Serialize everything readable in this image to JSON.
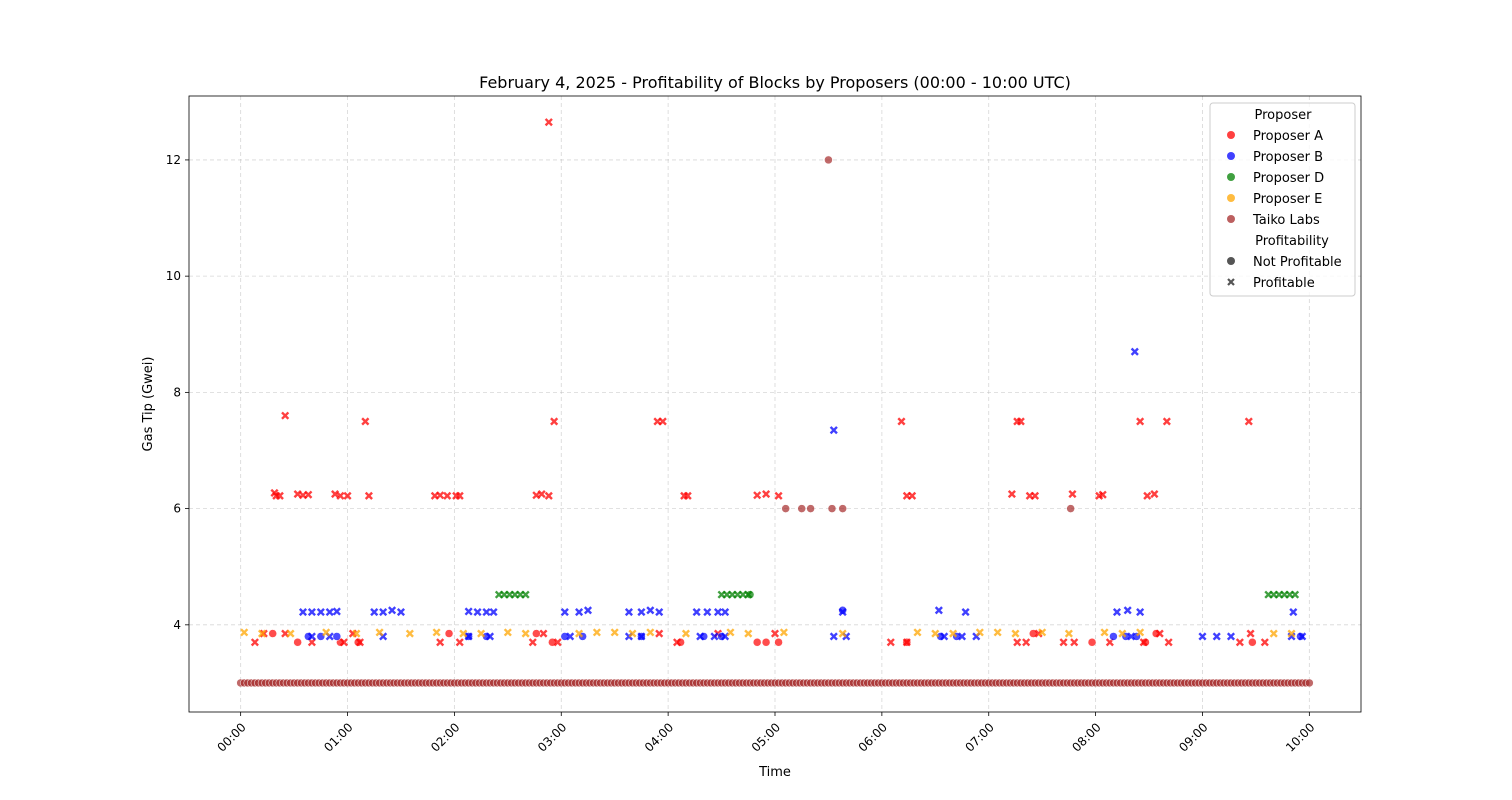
{
  "chart_data": {
    "type": "scatter",
    "title": "February 4, 2025 - Profitability of Blocks by Proposers (00:00 - 10:00 UTC)",
    "xlabel": "Time",
    "ylabel": "Gas Tip (Gwei)",
    "xlim": [
      "2025-02-04T23:31",
      "2025-02-05T10:29"
    ],
    "ylim": [
      2.5,
      13.1
    ],
    "x_ticks": [
      "00:00",
      "01:00",
      "02:00",
      "03:00",
      "04:00",
      "05:00",
      "06:00",
      "07:00",
      "08:00",
      "09:00",
      "10:00"
    ],
    "y_ticks": [
      4,
      6,
      8,
      10,
      12
    ],
    "grid": true,
    "legend": {
      "placement": "top-right",
      "hue_title": "Proposer",
      "style_title": "Profitability",
      "styles": [
        {
          "name": "Not Profitable",
          "marker": "circle"
        },
        {
          "name": "Profitable",
          "marker": "x"
        }
      ]
    },
    "series": [
      {
        "name": "Proposer A",
        "color": "#ff0000",
        "profitable": [
          [
            "00:19",
            6.27
          ],
          [
            "00:20",
            6.22
          ],
          [
            "00:22",
            6.22
          ],
          [
            "00:25",
            7.6
          ],
          [
            "00:32",
            6.25
          ],
          [
            "00:35",
            6.23
          ],
          [
            "00:38",
            6.24
          ],
          [
            "00:53",
            6.25
          ],
          [
            "00:56",
            6.22
          ],
          [
            "01:00",
            6.22
          ],
          [
            "01:10",
            7.5
          ],
          [
            "01:12",
            6.22
          ],
          [
            "01:49",
            6.22
          ],
          [
            "01:52",
            6.23
          ],
          [
            "01:56",
            6.22
          ],
          [
            "02:01",
            6.22
          ],
          [
            "02:03",
            6.22
          ],
          [
            "02:46",
            6.23
          ],
          [
            "02:49",
            6.25
          ],
          [
            "02:53",
            6.22
          ],
          [
            "02:56",
            7.5
          ],
          [
            "02:53",
            12.65
          ],
          [
            "03:54",
            7.5
          ],
          [
            "03:57",
            7.5
          ],
          [
            "04:09",
            6.22
          ],
          [
            "04:11",
            6.22
          ],
          [
            "04:50",
            6.23
          ],
          [
            "04:55",
            6.25
          ],
          [
            "05:02",
            6.22
          ],
          [
            "06:11",
            7.5
          ],
          [
            "06:14",
            6.22
          ],
          [
            "06:17",
            6.22
          ],
          [
            "07:13",
            6.25
          ],
          [
            "07:16",
            7.5
          ],
          [
            "07:18",
            7.5
          ],
          [
            "07:23",
            6.22
          ],
          [
            "07:26",
            6.22
          ],
          [
            "07:47",
            6.25
          ],
          [
            "08:02",
            6.22
          ],
          [
            "08:04",
            6.24
          ],
          [
            "08:25",
            7.5
          ],
          [
            "08:29",
            6.22
          ],
          [
            "08:33",
            6.25
          ],
          [
            "08:40",
            7.5
          ],
          [
            "09:26",
            7.5
          ],
          [
            "00:08",
            3.7
          ],
          [
            "00:13",
            3.85
          ],
          [
            "00:25",
            3.85
          ],
          [
            "00:40",
            3.7
          ],
          [
            "00:58",
            3.7
          ],
          [
            "01:03",
            3.85
          ],
          [
            "01:07",
            3.7
          ],
          [
            "01:52",
            3.7
          ],
          [
            "02:03",
            3.7
          ],
          [
            "02:44",
            3.7
          ],
          [
            "02:50",
            3.85
          ],
          [
            "02:58",
            3.7
          ],
          [
            "03:55",
            3.85
          ],
          [
            "04:05",
            3.7
          ],
          [
            "04:28",
            3.85
          ],
          [
            "05:00",
            3.85
          ],
          [
            "06:05",
            3.7
          ],
          [
            "06:14",
            3.7
          ],
          [
            "07:16",
            3.7
          ],
          [
            "07:21",
            3.7
          ],
          [
            "07:28",
            3.85
          ],
          [
            "07:42",
            3.7
          ],
          [
            "07:48",
            3.7
          ],
          [
            "08:08",
            3.7
          ],
          [
            "08:27",
            3.7
          ],
          [
            "08:36",
            3.85
          ],
          [
            "08:41",
            3.7
          ],
          [
            "09:21",
            3.7
          ],
          [
            "09:27",
            3.85
          ],
          [
            "09:35",
            3.7
          ]
        ],
        "not_profitable": [
          [
            "00:18",
            3.85
          ],
          [
            "00:32",
            3.7
          ],
          [
            "00:56",
            3.7
          ],
          [
            "01:06",
            3.7
          ],
          [
            "01:57",
            3.85
          ],
          [
            "02:46",
            3.85
          ],
          [
            "02:55",
            3.7
          ],
          [
            "04:07",
            3.7
          ],
          [
            "04:50",
            3.7
          ],
          [
            "04:55",
            3.7
          ],
          [
            "05:02",
            3.7
          ],
          [
            "06:14",
            3.7
          ],
          [
            "07:25",
            3.85
          ],
          [
            "07:58",
            3.7
          ],
          [
            "08:28",
            3.7
          ],
          [
            "08:34",
            3.85
          ],
          [
            "09:28",
            3.7
          ]
        ]
      },
      {
        "name": "Proposer B",
        "color": "#0000ff",
        "profitable": [
          [
            "00:35",
            4.22
          ],
          [
            "00:40",
            4.22
          ],
          [
            "00:45",
            4.22
          ],
          [
            "00:50",
            4.22
          ],
          [
            "00:54",
            4.23
          ],
          [
            "01:15",
            4.22
          ],
          [
            "01:20",
            4.22
          ],
          [
            "01:25",
            4.25
          ],
          [
            "01:30",
            4.22
          ],
          [
            "02:08",
            4.23
          ],
          [
            "02:13",
            4.22
          ],
          [
            "02:18",
            4.22
          ],
          [
            "02:22",
            4.22
          ],
          [
            "03:02",
            4.22
          ],
          [
            "03:10",
            4.22
          ],
          [
            "03:15",
            4.25
          ],
          [
            "03:38",
            4.22
          ],
          [
            "03:45",
            4.22
          ],
          [
            "03:50",
            4.25
          ],
          [
            "03:55",
            4.22
          ],
          [
            "04:16",
            4.22
          ],
          [
            "04:22",
            4.22
          ],
          [
            "04:28",
            4.22
          ],
          [
            "04:32",
            4.22
          ],
          [
            "05:33",
            7.35
          ],
          [
            "05:38",
            4.22
          ],
          [
            "06:32",
            4.25
          ],
          [
            "06:47",
            4.22
          ],
          [
            "08:12",
            4.22
          ],
          [
            "08:18",
            4.25
          ],
          [
            "08:22",
            8.7
          ],
          [
            "08:25",
            4.22
          ],
          [
            "09:51",
            4.22
          ],
          [
            "00:40",
            3.8
          ],
          [
            "00:50",
            3.8
          ],
          [
            "01:20",
            3.8
          ],
          [
            "02:08",
            3.8
          ],
          [
            "02:20",
            3.8
          ],
          [
            "03:05",
            3.8
          ],
          [
            "03:38",
            3.8
          ],
          [
            "03:45",
            3.8
          ],
          [
            "04:18",
            3.8
          ],
          [
            "04:26",
            3.8
          ],
          [
            "04:32",
            3.8
          ],
          [
            "05:33",
            3.8
          ],
          [
            "05:40",
            3.8
          ],
          [
            "06:35",
            3.8
          ],
          [
            "06:45",
            3.8
          ],
          [
            "06:53",
            3.8
          ],
          [
            "08:20",
            3.8
          ],
          [
            "09:00",
            3.8
          ],
          [
            "09:08",
            3.8
          ],
          [
            "09:16",
            3.8
          ],
          [
            "09:50",
            3.8
          ],
          [
            "09:56",
            3.8
          ]
        ],
        "not_profitable": [
          [
            "00:38",
            3.8
          ],
          [
            "00:45",
            3.8
          ],
          [
            "00:54",
            3.8
          ],
          [
            "02:08",
            3.8
          ],
          [
            "02:18",
            3.8
          ],
          [
            "03:02",
            3.8
          ],
          [
            "03:12",
            3.8
          ],
          [
            "03:45",
            3.8
          ],
          [
            "04:20",
            3.8
          ],
          [
            "04:30",
            3.8
          ],
          [
            "05:38",
            4.25
          ],
          [
            "06:33",
            3.8
          ],
          [
            "06:42",
            3.8
          ],
          [
            "08:10",
            3.8
          ],
          [
            "08:17",
            3.8
          ],
          [
            "08:23",
            3.8
          ],
          [
            "09:55",
            3.8
          ]
        ]
      },
      {
        "name": "Proposer D",
        "color": "#008000",
        "profitable": [
          [
            "02:25",
            4.52
          ],
          [
            "02:28",
            4.52
          ],
          [
            "02:31",
            4.52
          ],
          [
            "02:34",
            4.52
          ],
          [
            "02:37",
            4.52
          ],
          [
            "02:40",
            4.52
          ],
          [
            "04:30",
            4.52
          ],
          [
            "04:33",
            4.52
          ],
          [
            "04:36",
            4.52
          ],
          [
            "04:39",
            4.52
          ],
          [
            "04:42",
            4.52
          ],
          [
            "04:45",
            4.52
          ],
          [
            "09:37",
            4.52
          ],
          [
            "09:40",
            4.52
          ],
          [
            "09:43",
            4.52
          ],
          [
            "09:46",
            4.52
          ],
          [
            "09:49",
            4.52
          ],
          [
            "09:52",
            4.52
          ]
        ],
        "not_profitable": [
          [
            "04:46",
            4.52
          ]
        ]
      },
      {
        "name": "Proposer E",
        "color": "#ffa500",
        "profitable": [
          [
            "00:02",
            3.87
          ],
          [
            "00:12",
            3.85
          ],
          [
            "00:28",
            3.85
          ],
          [
            "00:48",
            3.87
          ],
          [
            "01:05",
            3.85
          ],
          [
            "01:18",
            3.87
          ],
          [
            "01:35",
            3.85
          ],
          [
            "01:50",
            3.87
          ],
          [
            "02:05",
            3.85
          ],
          [
            "02:15",
            3.85
          ],
          [
            "02:30",
            3.87
          ],
          [
            "02:40",
            3.85
          ],
          [
            "03:10",
            3.85
          ],
          [
            "03:20",
            3.87
          ],
          [
            "03:30",
            3.87
          ],
          [
            "03:40",
            3.85
          ],
          [
            "03:50",
            3.87
          ],
          [
            "04:10",
            3.85
          ],
          [
            "04:35",
            3.87
          ],
          [
            "04:45",
            3.85
          ],
          [
            "05:05",
            3.87
          ],
          [
            "05:38",
            3.85
          ],
          [
            "06:20",
            3.87
          ],
          [
            "06:30",
            3.85
          ],
          [
            "06:40",
            3.85
          ],
          [
            "06:55",
            3.87
          ],
          [
            "07:05",
            3.87
          ],
          [
            "07:15",
            3.85
          ],
          [
            "07:30",
            3.87
          ],
          [
            "07:45",
            3.85
          ],
          [
            "08:05",
            3.87
          ],
          [
            "08:15",
            3.85
          ],
          [
            "08:25",
            3.87
          ],
          [
            "09:40",
            3.85
          ],
          [
            "09:50",
            3.85
          ]
        ],
        "not_profitable": []
      },
      {
        "name": "Taiko Labs",
        "color": "#a52a2a",
        "profitable": [],
        "not_profitable": [
          [
            "05:06",
            6.0
          ],
          [
            "05:15",
            6.0
          ],
          [
            "05:20",
            6.0
          ],
          [
            "05:30",
            12.0
          ],
          [
            "05:32",
            6.0
          ],
          [
            "05:38",
            6.0
          ],
          [
            "07:46",
            6.0
          ]
        ],
        "baseline": {
          "value": 3.0,
          "from": "00:00",
          "to": "10:00"
        }
      }
    ]
  }
}
